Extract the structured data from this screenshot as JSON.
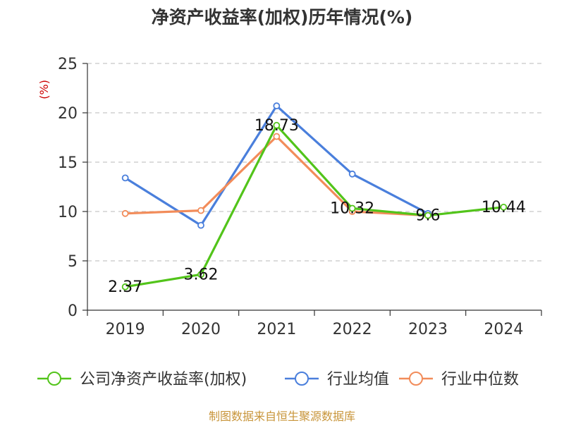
{
  "chart_data": {
    "type": "line",
    "title": "净资产收益率(加权)历年情况(%)",
    "ylabel": "(%)",
    "xlabel": "",
    "categories": [
      "2019",
      "2020",
      "2021",
      "2022",
      "2023",
      "2024"
    ],
    "ylim": [
      0,
      25
    ],
    "yticks": [
      0,
      5,
      10,
      15,
      20,
      25
    ],
    "grid": true,
    "legend_position": "bottom",
    "series": [
      {
        "name": "公司净资产收益率(加权)",
        "color": "#52c41a",
        "values": [
          2.37,
          3.62,
          18.73,
          10.32,
          9.6,
          10.44
        ],
        "labels": [
          "2.37",
          "3.62",
          "18.73",
          "10.32",
          "9.6",
          "10.44"
        ]
      },
      {
        "name": "行业均值",
        "color": "#4a7fdc",
        "values": [
          13.4,
          8.6,
          20.7,
          13.8,
          9.8,
          null
        ]
      },
      {
        "name": "行业中位数",
        "color": "#f28c5a",
        "values": [
          9.8,
          10.1,
          17.6,
          10.0,
          9.6,
          null
        ]
      }
    ],
    "source": "制图数据来自恒生聚源数据库"
  }
}
